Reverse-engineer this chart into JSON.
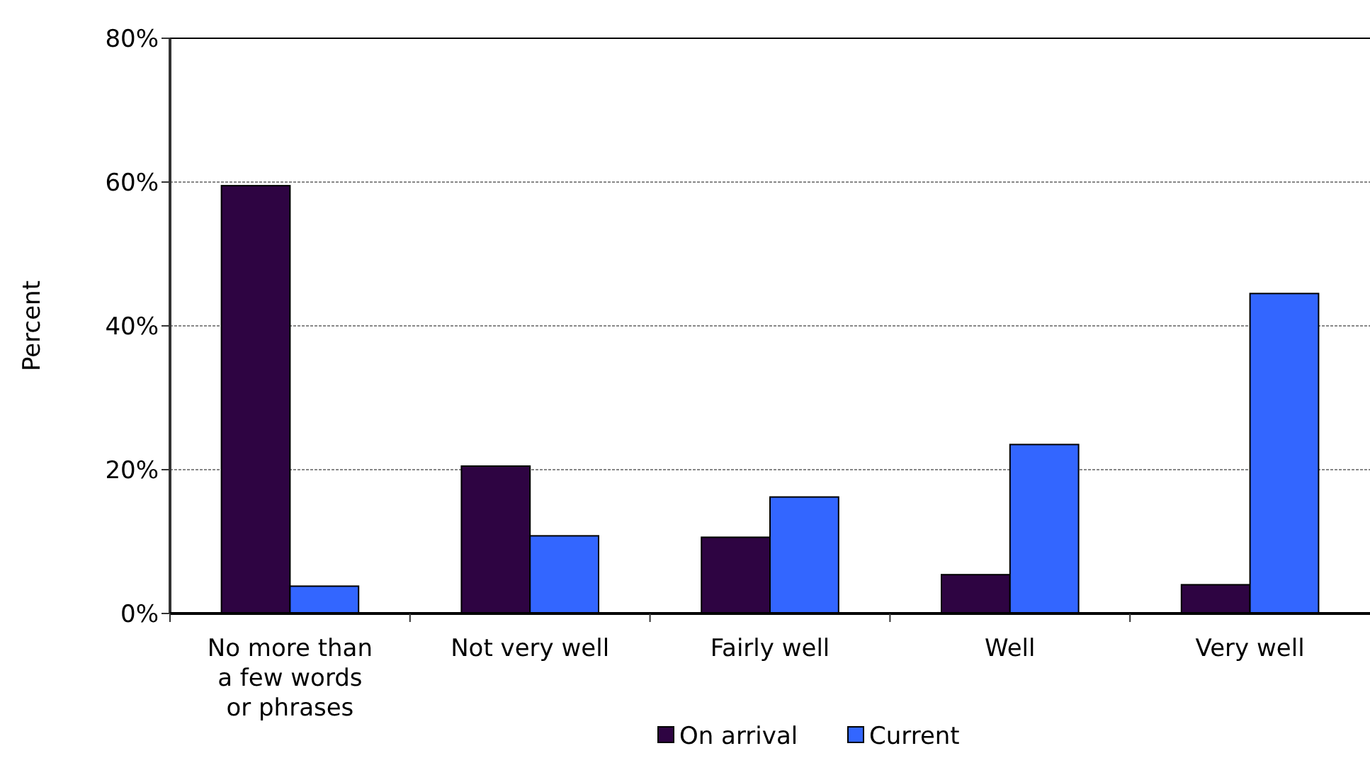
{
  "chart_data": {
    "type": "bar",
    "ylabel": "Percent",
    "categories": [
      "No more than a few words or phrases",
      "Not very well",
      "Fairly well",
      "Well",
      "Very well"
    ],
    "series": [
      {
        "name": "On arrival",
        "color": "#2e0442",
        "values": [
          59.5,
          20.5,
          10.6,
          5.4,
          4.0
        ]
      },
      {
        "name": "Current",
        "color": "#3366ff",
        "values": [
          3.8,
          10.8,
          16.2,
          23.5,
          44.5
        ]
      }
    ],
    "ylim": [
      0,
      80
    ],
    "yticks": [
      {
        "value": 0,
        "label": "0%"
      },
      {
        "value": 20,
        "label": "20%"
      },
      {
        "value": 40,
        "label": "40%"
      },
      {
        "value": 60,
        "label": "60%"
      },
      {
        "value": 80,
        "label": "80%"
      }
    ],
    "grid": "y",
    "legend": "bottom"
  }
}
